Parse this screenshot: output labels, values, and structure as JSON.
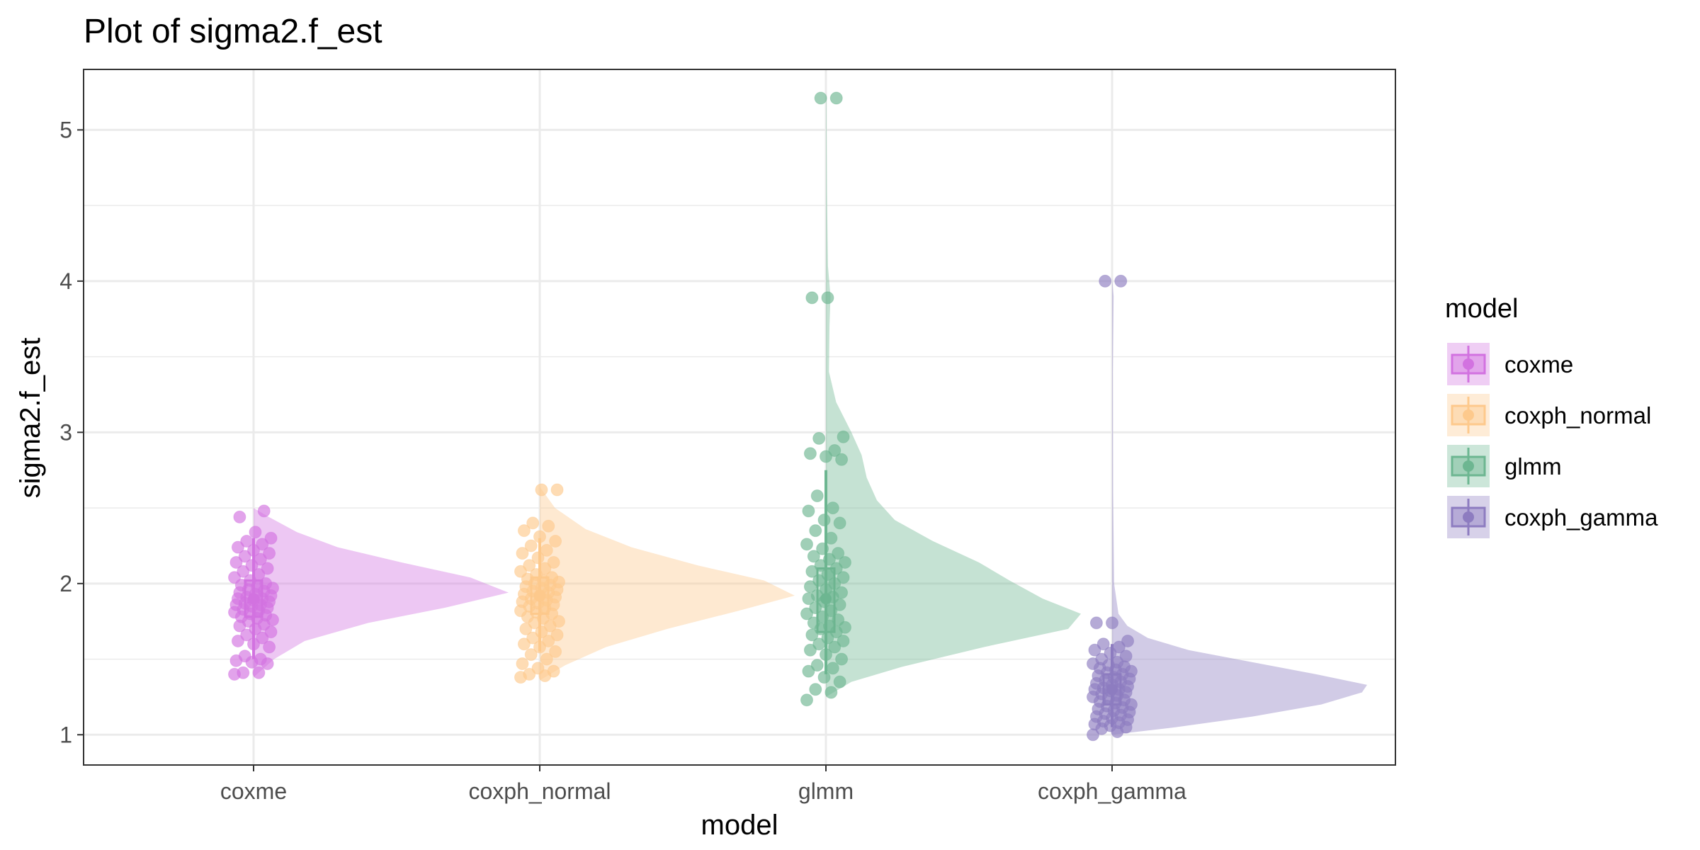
{
  "chart_data": {
    "type": "raincloud",
    "title": "Plot of sigma2.f_est",
    "xlabel": "model",
    "ylabel": "sigma2.f_est",
    "categories": [
      "coxme",
      "coxph_normal",
      "glmm",
      "coxph_gamma"
    ],
    "ylim": [
      0.8,
      5.4
    ],
    "yticks": [
      1,
      2,
      3,
      4,
      5
    ],
    "ytick_labels": [
      "1",
      "2",
      "3",
      "4",
      "5"
    ],
    "grid": true,
    "legend": {
      "title": "model",
      "position": "right",
      "entries": [
        "coxme",
        "coxph_normal",
        "glmm",
        "coxph_gamma"
      ]
    },
    "colors": {
      "coxme": "#d272e0",
      "coxph_normal": "#fdc98c",
      "glmm": "#6db691",
      "coxph_gamma": "#8d7cc0"
    },
    "series": [
      {
        "name": "coxme",
        "summary": {
          "q1": 1.78,
          "median": 1.9,
          "q3": 2.02,
          "lo": 1.5,
          "hi": 2.3
        },
        "density": [
          [
            1.38,
            0.0
          ],
          [
            1.5,
            0.08
          ],
          [
            1.62,
            0.2
          ],
          [
            1.74,
            0.45
          ],
          [
            1.84,
            0.75
          ],
          [
            1.94,
            1.0
          ],
          [
            2.04,
            0.85
          ],
          [
            2.14,
            0.58
          ],
          [
            2.24,
            0.33
          ],
          [
            2.34,
            0.17
          ],
          [
            2.44,
            0.06
          ],
          [
            2.5,
            0.0
          ]
        ],
        "points": [
          1.4,
          1.41,
          1.41,
          1.47,
          1.48,
          1.49,
          1.5,
          1.52,
          1.58,
          1.6,
          1.62,
          1.64,
          1.66,
          1.68,
          1.7,
          1.72,
          1.73,
          1.75,
          1.76,
          1.77,
          1.78,
          1.79,
          1.8,
          1.81,
          1.82,
          1.83,
          1.84,
          1.85,
          1.86,
          1.86,
          1.87,
          1.88,
          1.89,
          1.9,
          1.9,
          1.91,
          1.92,
          1.93,
          1.94,
          1.95,
          1.96,
          1.97,
          1.98,
          1.99,
          2.0,
          2.02,
          2.04,
          2.06,
          2.08,
          2.1,
          2.12,
          2.14,
          2.16,
          2.18,
          2.2,
          2.22,
          2.24,
          2.26,
          2.28,
          2.3,
          2.34,
          2.44,
          2.48
        ]
      },
      {
        "name": "coxph_normal",
        "summary": {
          "q1": 1.8,
          "median": 1.92,
          "q3": 2.04,
          "lo": 1.55,
          "hi": 2.3
        },
        "density": [
          [
            1.36,
            0.0
          ],
          [
            1.46,
            0.1
          ],
          [
            1.58,
            0.26
          ],
          [
            1.7,
            0.5
          ],
          [
            1.82,
            0.78
          ],
          [
            1.92,
            1.0
          ],
          [
            2.02,
            0.88
          ],
          [
            2.12,
            0.62
          ],
          [
            2.24,
            0.36
          ],
          [
            2.36,
            0.18
          ],
          [
            2.5,
            0.06
          ],
          [
            2.64,
            0.0
          ]
        ],
        "points": [
          1.38,
          1.39,
          1.4,
          1.42,
          1.44,
          1.47,
          1.5,
          1.53,
          1.55,
          1.58,
          1.6,
          1.62,
          1.64,
          1.66,
          1.68,
          1.7,
          1.72,
          1.74,
          1.75,
          1.77,
          1.78,
          1.8,
          1.81,
          1.82,
          1.84,
          1.85,
          1.86,
          1.87,
          1.88,
          1.89,
          1.9,
          1.91,
          1.92,
          1.93,
          1.94,
          1.95,
          1.96,
          1.97,
          1.98,
          1.99,
          2.0,
          2.01,
          2.02,
          2.03,
          2.04,
          2.06,
          2.08,
          2.1,
          2.12,
          2.14,
          2.17,
          2.2,
          2.22,
          2.25,
          2.28,
          2.31,
          2.35,
          2.38,
          2.4,
          2.62,
          2.62
        ]
      },
      {
        "name": "glmm",
        "summary": {
          "q1": 1.68,
          "median": 1.9,
          "q3": 2.1,
          "lo": 1.4,
          "hi": 2.75
        },
        "density": [
          [
            1.25,
            0.0
          ],
          [
            1.35,
            0.1
          ],
          [
            1.45,
            0.3
          ],
          [
            1.58,
            0.62
          ],
          [
            1.7,
            0.95
          ],
          [
            1.8,
            1.0
          ],
          [
            1.9,
            0.85
          ],
          [
            2.02,
            0.72
          ],
          [
            2.14,
            0.6
          ],
          [
            2.28,
            0.42
          ],
          [
            2.42,
            0.27
          ],
          [
            2.55,
            0.2
          ],
          [
            2.7,
            0.16
          ],
          [
            2.85,
            0.14
          ],
          [
            3.0,
            0.1
          ],
          [
            3.2,
            0.04
          ],
          [
            3.4,
            0.012
          ],
          [
            3.7,
            0.014
          ],
          [
            3.9,
            0.018
          ],
          [
            4.1,
            0.008
          ],
          [
            4.6,
            0.004
          ],
          [
            5.2,
            0.002
          ],
          [
            5.25,
            0.0
          ]
        ],
        "points": [
          1.23,
          1.28,
          1.3,
          1.35,
          1.38,
          1.42,
          1.44,
          1.46,
          1.5,
          1.53,
          1.56,
          1.58,
          1.6,
          1.62,
          1.64,
          1.66,
          1.68,
          1.7,
          1.71,
          1.72,
          1.74,
          1.76,
          1.78,
          1.8,
          1.82,
          1.84,
          1.86,
          1.88,
          1.9,
          1.91,
          1.92,
          1.94,
          1.96,
          1.98,
          2.0,
          2.02,
          2.04,
          2.06,
          2.08,
          2.1,
          2.12,
          2.14,
          2.16,
          2.18,
          2.2,
          2.23,
          2.26,
          2.3,
          2.35,
          2.4,
          2.42,
          2.48,
          2.5,
          2.58,
          2.82,
          2.84,
          2.86,
          2.88,
          2.96,
          2.97,
          3.89,
          3.89,
          5.21,
          5.21
        ]
      },
      {
        "name": "coxph_gamma",
        "summary": {
          "q1": 1.2,
          "median": 1.3,
          "q3": 1.4,
          "lo": 1.05,
          "hi": 1.6
        },
        "density": [
          [
            1.0,
            0.0
          ],
          [
            1.05,
            0.25
          ],
          [
            1.12,
            0.55
          ],
          [
            1.2,
            0.82
          ],
          [
            1.28,
            0.98
          ],
          [
            1.33,
            1.0
          ],
          [
            1.4,
            0.8
          ],
          [
            1.48,
            0.55
          ],
          [
            1.56,
            0.3
          ],
          [
            1.64,
            0.14
          ],
          [
            1.72,
            0.06
          ],
          [
            1.8,
            0.025
          ],
          [
            2.0,
            0.008
          ],
          [
            2.6,
            0.004
          ],
          [
            3.4,
            0.003
          ],
          [
            3.9,
            0.006
          ],
          [
            4.02,
            0.0
          ]
        ],
        "points": [
          1.0,
          1.02,
          1.04,
          1.05,
          1.06,
          1.07,
          1.08,
          1.09,
          1.1,
          1.11,
          1.12,
          1.13,
          1.14,
          1.15,
          1.16,
          1.17,
          1.18,
          1.19,
          1.2,
          1.21,
          1.22,
          1.23,
          1.24,
          1.25,
          1.26,
          1.27,
          1.28,
          1.29,
          1.3,
          1.3,
          1.31,
          1.32,
          1.33,
          1.34,
          1.35,
          1.36,
          1.37,
          1.38,
          1.39,
          1.4,
          1.41,
          1.42,
          1.43,
          1.44,
          1.45,
          1.46,
          1.47,
          1.48,
          1.5,
          1.52,
          1.54,
          1.56,
          1.58,
          1.6,
          1.62,
          1.74,
          1.74,
          4.0,
          4.0
        ]
      }
    ]
  }
}
